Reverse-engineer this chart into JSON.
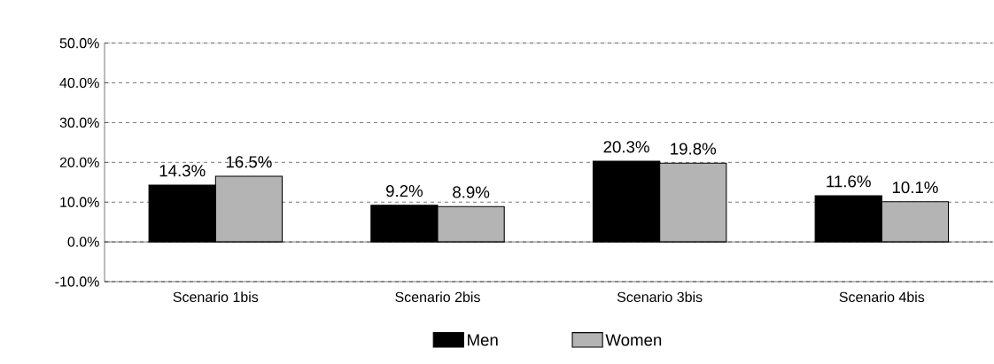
{
  "chart_data": {
    "type": "bar",
    "categories": [
      "Scenario 1bis",
      "Scenario 2bis",
      "Scenario 3bis",
      "Scenario 4bis"
    ],
    "series": [
      {
        "name": "Men",
        "color": "#000000",
        "values": [
          14.3,
          9.2,
          20.3,
          11.6
        ],
        "value_labels": [
          "14.3%",
          "9.2%",
          "20.3%",
          "11.6%"
        ]
      },
      {
        "name": "Women",
        "color": "#b4b4b4",
        "values": [
          16.5,
          8.9,
          19.8,
          10.1
        ],
        "value_labels": [
          "16.5%",
          "8.9%",
          "19.8%",
          "10.1%"
        ]
      }
    ],
    "ylim": [
      -10,
      50
    ],
    "yticks": [
      {
        "value": -10,
        "label": "-10.0%"
      },
      {
        "value": 0,
        "label": "0.0%"
      },
      {
        "value": 10,
        "label": "10.0%"
      },
      {
        "value": 20,
        "label": "20.0%"
      },
      {
        "value": 30,
        "label": "30.0%"
      },
      {
        "value": 40,
        "label": "40.0%"
      },
      {
        "value": 50,
        "label": "50.0%"
      }
    ],
    "grid": "y",
    "legend": "bottom"
  }
}
